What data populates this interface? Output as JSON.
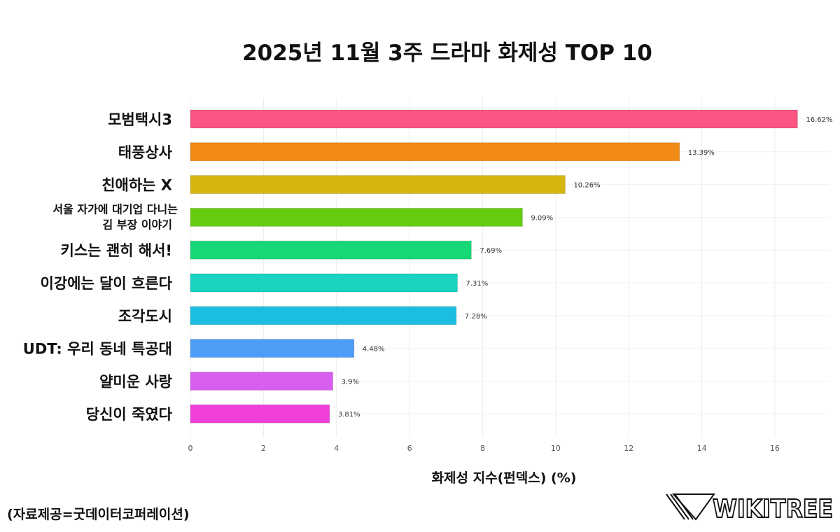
{
  "chart_data": {
    "type": "bar",
    "orientation": "horizontal",
    "title": "2025년 11월 3주 드라마 화제성 TOP 10",
    "xlabel": "화제성 지수(펀덱스) (%)",
    "ylabel": "",
    "xlim": [
      0,
      17.5
    ],
    "xticks": [
      0,
      2,
      4,
      6,
      8,
      10,
      12,
      14,
      16
    ],
    "grid": true,
    "legend": "none",
    "categories": [
      [
        "모범택시3"
      ],
      [
        "태풍상사"
      ],
      [
        "친애하는 X"
      ],
      [
        "서울 자가에 대기업 다니는",
        "김 부장 이야기"
      ],
      [
        "키스는 괜히 해서!"
      ],
      [
        "이강에는 달이 흐른다"
      ],
      [
        "조각도시"
      ],
      [
        "UDT: 우리 동네 특공대"
      ],
      [
        "얄미운 사랑"
      ],
      [
        "당신이 죽였다"
      ]
    ],
    "values": [
      16.62,
      13.39,
      10.26,
      9.09,
      7.69,
      7.31,
      7.28,
      4.48,
      3.9,
      3.81
    ],
    "data_labels": [
      "16.62%",
      "13.39%",
      "10.26%",
      "9.09%",
      "7.69%",
      "7.31%",
      "7.28%",
      "4.48%",
      "3.9%",
      "3.81%"
    ],
    "colors": [
      "#fa5483",
      "#f08a14",
      "#d4b60f",
      "#66cc0f",
      "#16d877",
      "#17d3c0",
      "#1bbde0",
      "#4d9cf5",
      "#d75ff0",
      "#f03fd8"
    ]
  },
  "source": "(자료제공=굿데이터코퍼레이션)",
  "logo_text": "WIKITREE"
}
